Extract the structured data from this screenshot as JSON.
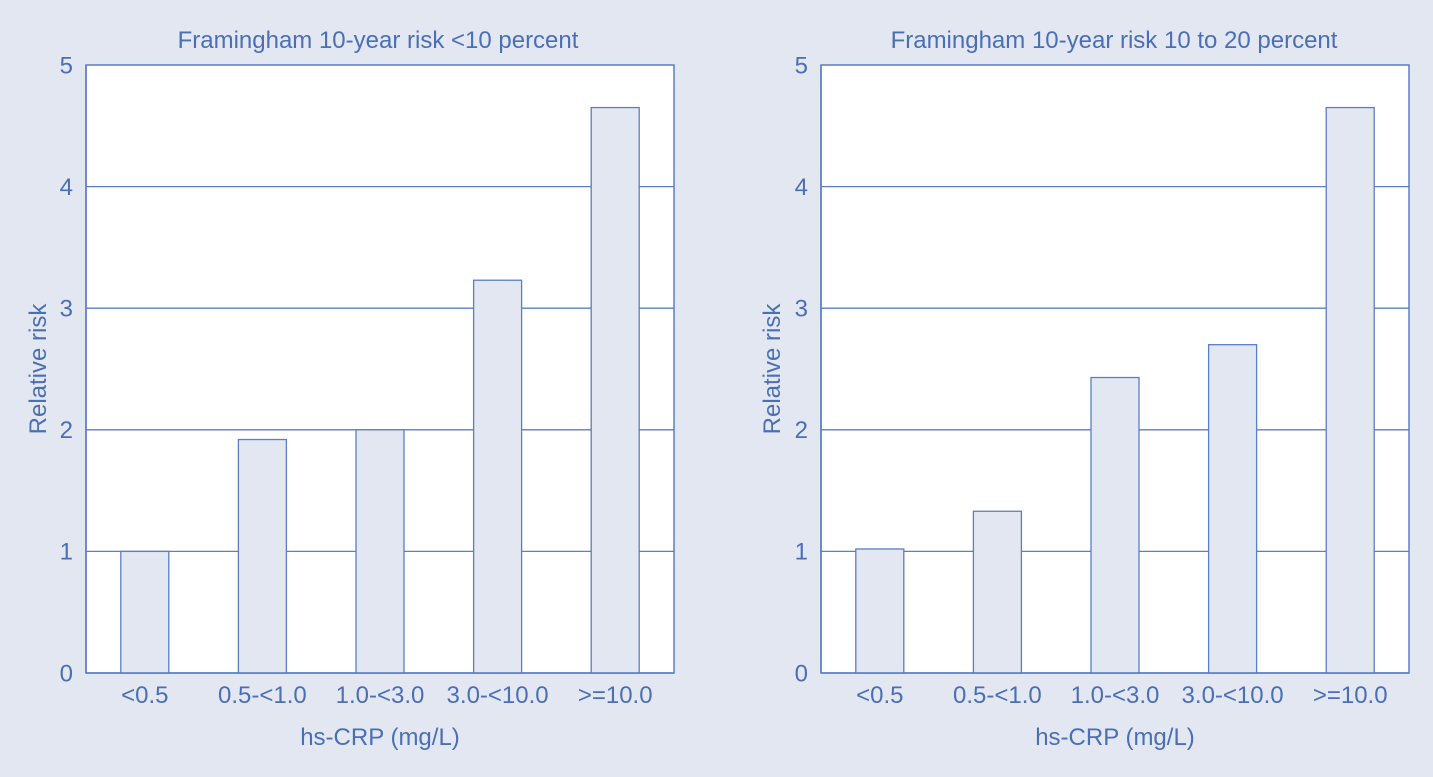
{
  "colors": {
    "background": "#e3e7f1",
    "plot_area": "#ffffff",
    "bar_fill": "#e3e7f1",
    "bar_stroke": "#5a7fc2",
    "grid": "#5a7fc2",
    "axis": "#5a7fc2",
    "text": "#4a6fb5"
  },
  "chart_data": [
    {
      "type": "bar",
      "title": "Framingham 10-year risk <10 percent",
      "xlabel": "hs-CRP (mg/L)",
      "ylabel": "Relative risk",
      "categories": [
        "<0.5",
        "0.5-<1.0",
        "1.0-<3.0",
        "3.0-<10.0",
        ">=10.0"
      ],
      "values": [
        1.0,
        1.92,
        2.0,
        3.23,
        4.65
      ],
      "ylim": [
        0,
        5
      ],
      "yticks": [
        "0",
        "1",
        "2",
        "3",
        "4",
        "5"
      ],
      "grid": true
    },
    {
      "type": "bar",
      "title": "Framingham 10-year risk 10 to 20 percent",
      "xlabel": "hs-CRP (mg/L)",
      "ylabel": "Relative risk",
      "categories": [
        "<0.5",
        "0.5-<1.0",
        "1.0-<3.0",
        "3.0-<10.0",
        ">=10.0"
      ],
      "values": [
        1.02,
        1.33,
        2.43,
        2.7,
        4.65
      ],
      "ylim": [
        0,
        5
      ],
      "yticks": [
        "0",
        "1",
        "2",
        "3",
        "4",
        "5"
      ],
      "grid": true
    }
  ]
}
